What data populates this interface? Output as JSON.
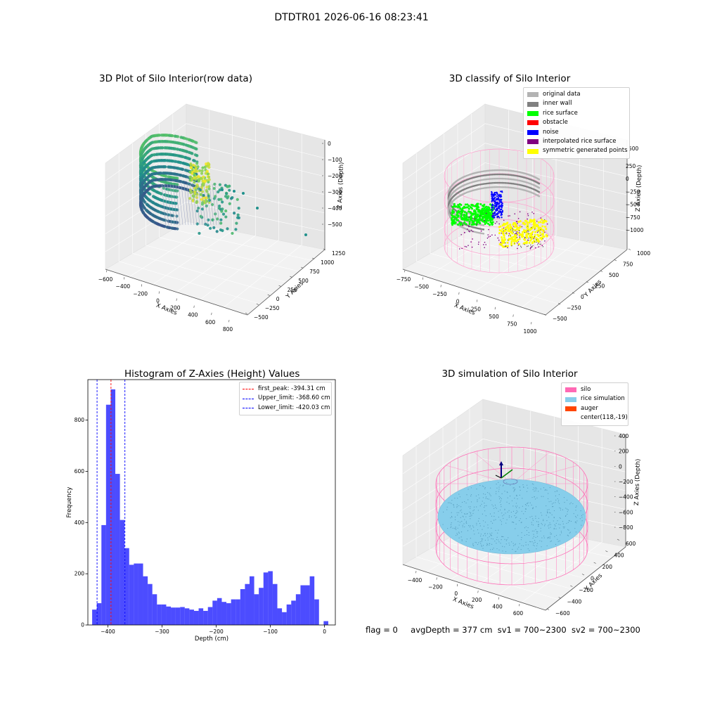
{
  "suptitle": "DTDTR01 2026-06-16 08:23:41",
  "chart_data": [
    {
      "type": "scatter",
      "projection": "3d",
      "title": "3D Plot of Silo Interior(row data)",
      "xlabel": "X Axies",
      "ylabel": "Y Axies",
      "zlabel": "Z Axies (Depth)",
      "x_ticks": [
        "−600",
        "−400",
        "−200",
        "0",
        "200",
        "400",
        "600",
        "800"
      ],
      "y_ticks": [
        "−500",
        "−250",
        "0",
        "250",
        "500",
        "750",
        "1000",
        "1250"
      ],
      "z_ticks": [
        "0",
        "−100",
        "−200",
        "−300",
        "−400",
        "−500"
      ],
      "colormap": "viridis"
    },
    {
      "type": "scatter",
      "projection": "3d",
      "title": "3D classify of Silo Interior",
      "xlabel": "X Axies",
      "ylabel": "Y Axies",
      "zlabel": "Z Axies (Depth)",
      "x_ticks": [
        "−750",
        "−500",
        "−250",
        "0",
        "250",
        "500",
        "750",
        "1000"
      ],
      "y_ticks": [
        "−500",
        "−250",
        "0",
        "250",
        "500",
        "750",
        "1000"
      ],
      "z_ticks": [
        "250",
        "0",
        "−250",
        "−500",
        "−750",
        "−1000"
      ],
      "z_ticks_extra": "500",
      "legend_position": "top-right",
      "legend": [
        {
          "label": "original data",
          "color": "#b3b3b3"
        },
        {
          "label": "inner wall",
          "color": "#808080"
        },
        {
          "label": "rice surface",
          "color": "#00ff00"
        },
        {
          "label": "obstacle",
          "color": "#ff0000"
        },
        {
          "label": "noise",
          "color": "#0000ff"
        },
        {
          "label": "interpolated rice surface",
          "color": "#800080"
        },
        {
          "label": "symmetric generated points",
          "color": "#ffff00"
        }
      ]
    },
    {
      "type": "bar",
      "title": "Histogram of Z-Axies (Height) Values",
      "xlabel": "Depth (cm)",
      "ylabel": "Frequency",
      "xlim": [
        -437,
        20
      ],
      "ylim": [
        0,
        958
      ],
      "x_ticks": [
        -400,
        -300,
        -200,
        -100,
        0
      ],
      "x_tick_labels": [
        "−400",
        "−300",
        "−200",
        "−100",
        "0"
      ],
      "y_ticks": [
        0,
        200,
        400,
        600,
        800
      ],
      "bar_color": "#0000ff",
      "bin_width": 8.55,
      "bins_start": -429.1,
      "values": [
        60,
        85,
        390,
        860,
        920,
        590,
        410,
        300,
        235,
        240,
        240,
        190,
        160,
        120,
        80,
        80,
        72,
        68,
        68,
        70,
        65,
        60,
        55,
        65,
        55,
        70,
        95,
        105,
        90,
        85,
        100,
        100,
        140,
        160,
        190,
        120,
        145,
        205,
        210,
        160,
        65,
        50,
        80,
        95,
        120,
        155,
        155,
        190,
        100,
        0,
        15
      ],
      "vlines": [
        {
          "label": "first_peak: -394.31 cm",
          "x": -394.31,
          "color": "#ff0000",
          "style": "dashed"
        },
        {
          "label": "Upper_limit: -368.60 cm",
          "x": -368.6,
          "color": "#0000ff",
          "style": "dashed"
        },
        {
          "label": "Lower_limit: -420.03 cm",
          "x": -420.03,
          "color": "#0000ff",
          "style": "dashed"
        }
      ],
      "legend_position": "top-right"
    },
    {
      "type": "scatter",
      "projection": "3d",
      "title": "3D simulation of Silo Interior",
      "xlabel": "X Axies",
      "ylabel": "Y Axies",
      "zlabel": "Z Axies (Depth)",
      "x_ticks": [
        "−400",
        "−200",
        "0",
        "200",
        "400",
        "600"
      ],
      "y_ticks": [
        "−600",
        "−400",
        "−200",
        "0",
        "200",
        "400",
        "600"
      ],
      "z_ticks": [
        "400",
        "200",
        "0",
        "−200",
        "−400",
        "−600",
        "−800"
      ],
      "legend_position": "top-right",
      "legend": [
        {
          "label": "silo",
          "color": "#ff69b4"
        },
        {
          "label": "rice simulation",
          "color": "#87ceeb"
        },
        {
          "label": "auger",
          "color": "#ff4500"
        },
        {
          "label": "center(118,-19)",
          "color": ""
        }
      ]
    }
  ],
  "status": {
    "flag": "flag = 0",
    "avg_depth": "avgDepth = 377 cm",
    "sv1": "sv1 = 700~2300",
    "sv2": "sv2 = 700~2300"
  }
}
